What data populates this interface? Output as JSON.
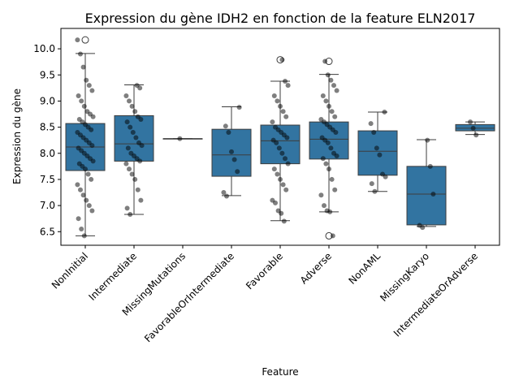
{
  "chart_data": {
    "type": "box",
    "title": "Expression du gène IDH2 en fonction de la feature ELN2017",
    "x_label": "Feature",
    "y_label": "Expression du gène",
    "color": "#3274a1",
    "categories": [
      "NonInitial",
      "Intermediate",
      "MissingMutations",
      "FavorableOrIntermediate",
      "Favorable",
      "Adverse",
      "NonAML",
      "MissingKaryo",
      "IntermediateOrAdverse"
    ],
    "boxes": [
      {
        "whislo": 6.42,
        "q1": 7.67,
        "med": 8.12,
        "q3": 8.57,
        "whishi": 9.91,
        "fliers": [
          10.17
        ]
      },
      {
        "whislo": 6.83,
        "q1": 7.85,
        "med": 8.18,
        "q3": 8.72,
        "whishi": 9.31,
        "fliers": []
      },
      {
        "whislo": 8.28,
        "q1": 8.28,
        "med": 8.28,
        "q3": 8.28,
        "whishi": 8.28,
        "fliers": []
      },
      {
        "whislo": 7.19,
        "q1": 7.56,
        "med": 7.97,
        "q3": 8.46,
        "whishi": 8.89,
        "fliers": []
      },
      {
        "whislo": 6.71,
        "q1": 7.8,
        "med": 8.24,
        "q3": 8.54,
        "whishi": 9.38,
        "fliers": [
          9.79
        ]
      },
      {
        "whislo": 6.88,
        "q1": 7.89,
        "med": 8.27,
        "q3": 8.6,
        "whishi": 9.51,
        "fliers": [
          9.76,
          6.42
        ]
      },
      {
        "whislo": 7.27,
        "q1": 7.58,
        "med": 8.04,
        "q3": 8.43,
        "whishi": 8.79,
        "fliers": []
      },
      {
        "whislo": 6.6,
        "q1": 6.63,
        "med": 7.22,
        "q3": 7.75,
        "whishi": 8.26,
        "fliers": []
      },
      {
        "whislo": 8.36,
        "q1": 8.43,
        "med": 8.48,
        "q3": 8.55,
        "whishi": 8.6,
        "fliers": []
      }
    ],
    "points": [
      [
        10.17,
        9.9,
        9.65,
        9.4,
        9.3,
        9.2,
        9.1,
        9.0,
        8.9,
        8.8,
        8.75,
        8.7,
        8.65,
        8.6,
        8.55,
        8.5,
        8.45,
        8.4,
        8.35,
        8.3,
        8.25,
        8.2,
        8.15,
        8.1,
        8.05,
        8.0,
        7.95,
        7.9,
        7.85,
        7.8,
        7.75,
        7.7,
        7.6,
        7.5,
        7.4,
        7.3,
        7.2,
        7.1,
        7.0,
        6.9,
        6.75,
        6.55,
        6.42
      ],
      [
        9.3,
        9.25,
        9.1,
        9.0,
        8.9,
        8.8,
        8.7,
        8.65,
        8.6,
        8.5,
        8.4,
        8.3,
        8.2,
        8.15,
        8.1,
        8.0,
        7.95,
        7.9,
        7.85,
        7.8,
        7.7,
        7.6,
        7.5,
        7.3,
        7.1,
        6.95,
        6.83
      ],
      [
        8.28
      ],
      [
        8.88,
        8.52,
        8.4,
        8.03,
        7.88,
        7.65,
        7.25,
        7.18
      ],
      [
        9.79,
        9.38,
        9.3,
        9.1,
        9.0,
        8.9,
        8.8,
        8.7,
        8.6,
        8.5,
        8.45,
        8.4,
        8.35,
        8.3,
        8.25,
        8.2,
        8.1,
        8.0,
        7.9,
        7.8,
        7.7,
        7.6,
        7.5,
        7.4,
        7.3,
        7.1,
        7.05,
        6.9,
        6.85,
        6.7
      ],
      [
        9.76,
        9.5,
        9.4,
        9.3,
        9.2,
        9.1,
        9.0,
        8.9,
        8.8,
        8.7,
        8.65,
        8.6,
        8.55,
        8.5,
        8.45,
        8.4,
        8.3,
        8.25,
        8.2,
        8.1,
        8.0,
        7.95,
        7.9,
        7.8,
        7.7,
        7.5,
        7.3,
        7.2,
        7.0,
        6.9,
        6.88,
        6.42
      ],
      [
        8.79,
        8.57,
        8.4,
        8.1,
        7.97,
        7.6,
        7.55,
        7.42,
        7.27
      ],
      [
        8.25,
        7.75,
        7.22,
        6.62,
        6.58
      ],
      [
        8.6,
        8.48,
        8.35
      ]
    ],
    "ylim": [
      6.24,
      10.39
    ],
    "yticks": [
      6.5,
      {
        "value": 7,
        "label": "7.0"
      },
      7.5,
      {
        "value": 8,
        "label": "8.0"
      },
      8.5,
      {
        "value": 9,
        "label": "9.0"
      },
      9.5,
      {
        "value": 10,
        "label": "10.0"
      }
    ]
  }
}
